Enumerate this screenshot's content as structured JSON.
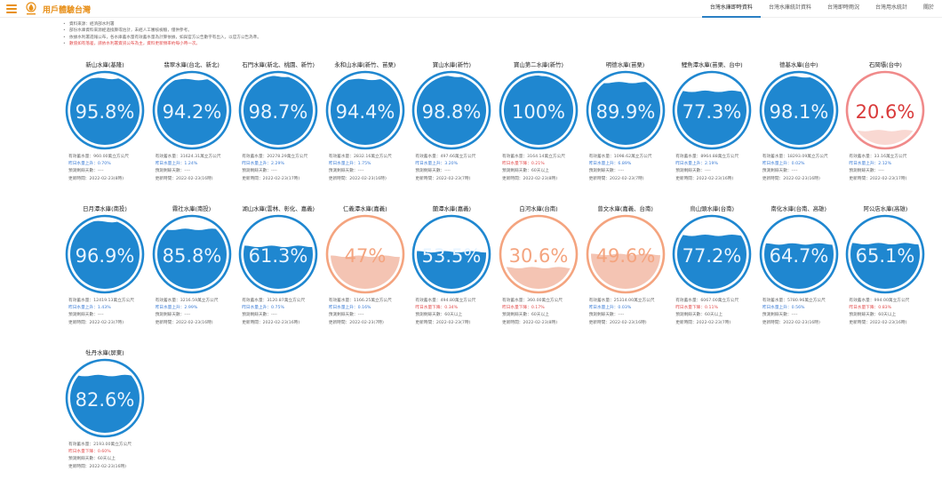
{
  "header": {
    "menu_icon": "hamburger-menu-icon",
    "logo_icon": "water-logo-icon",
    "title": "用戶體驗台灣"
  },
  "nav": {
    "tabs": [
      {
        "label": "台灣水庫即時資料",
        "active": true
      },
      {
        "label": "台灣水庫統計資料",
        "active": false
      },
      {
        "label": "台灣即時雨況",
        "active": false
      },
      {
        "label": "台灣用水統計",
        "active": false
      },
      {
        "label": "關於"
      }
    ]
  },
  "notes": [
    {
      "text": "資料來源：經濟部水利署",
      "red": false
    },
    {
      "text": "部份水庫資料來源經過換算或估計，未經人工審核檢驗，僅供參考。",
      "red": false
    },
    {
      "text": "依據水利署週報公布，各水庫蓄水量有效蓄水量為計算依據，如與官方公告數字有出入，以官方公告為準。",
      "red": false
    },
    {
      "text": "數值如有落差，請依水利署資訊公布為主，資料更新頻率約每小時一次。",
      "red": true
    }
  ],
  "colors": {
    "normal_fill": "#1f87d0",
    "normal_ring": "#1f87d0",
    "normal_text": "#e8f4ff",
    "low_fill": "#f4c4b3",
    "low_ring": "#f4a47f",
    "low_text": "#f4a47f",
    "critical_fill": "#f9d8d2",
    "critical_ring": "#f08a8a",
    "critical_text": "#d93a3a"
  },
  "labels": {
    "capacity": "有效蓄水量：",
    "daily_up": "昨日水量上升：",
    "daily_down": "昨日水量下降：",
    "days_left": "預測剩餘天數：",
    "updated": "更新時間："
  },
  "reservoirs": [
    {
      "name": "新山水庫(基隆)",
      "percent": 95.8,
      "percent_text": "95.8%",
      "status": "normal",
      "capacity": "960.00萬立方公尺",
      "direction": "up",
      "change": "0.70%",
      "days": "----",
      "updated": "2022-02-23(8時)"
    },
    {
      "name": "翡翠水庫(台北、新北)",
      "percent": 94.2,
      "percent_text": "94.2%",
      "status": "normal",
      "capacity": "31624.31萬立方公尺",
      "direction": "up",
      "change": "1.24%",
      "days": "----",
      "updated": "2022-02-23(16時)"
    },
    {
      "name": "石門水庫(新北、桃園、新竹)",
      "percent": 98.7,
      "percent_text": "98.7%",
      "status": "normal",
      "capacity": "20278.29萬立方公尺",
      "direction": "up",
      "change": "2.29%",
      "days": "----",
      "updated": "2022-02-23(17時)"
    },
    {
      "name": "永和山水庫(新竹、苗栗)",
      "percent": 94.4,
      "percent_text": "94.4%",
      "status": "normal",
      "capacity": "2832.16萬立方公尺",
      "direction": "up",
      "change": "1.75%",
      "days": "----",
      "updated": "2022-02-23(16時)"
    },
    {
      "name": "寶山水庫(新竹)",
      "percent": 98.8,
      "percent_text": "98.8%",
      "status": "normal",
      "capacity": "497.66萬立方公尺",
      "direction": "up",
      "change": "3.20%",
      "days": "----",
      "updated": "2022-02-23(7時)"
    },
    {
      "name": "寶山第二水庫(新竹)",
      "percent": 100,
      "percent_text": "100%",
      "status": "normal",
      "capacity": "3164.14萬立方公尺",
      "direction": "down",
      "change": "0.21%",
      "days": "60天以上",
      "updated": "2022-02-23(8時)"
    },
    {
      "name": "明德水庫(苗栗)",
      "percent": 89.9,
      "percent_text": "89.9%",
      "status": "normal",
      "capacity": "1098.62萬立方公尺",
      "direction": "up",
      "change": "6.89%",
      "days": "----",
      "updated": "2022-02-23(7時)"
    },
    {
      "name": "鯉魚潭水庫(苗栗、台中)",
      "percent": 77.3,
      "percent_text": "77.3%",
      "status": "normal",
      "capacity": "8964.88萬立方公尺",
      "direction": "up",
      "change": "2.19%",
      "days": "----",
      "updated": "2022-02-23(16時)"
    },
    {
      "name": "德基水庫(台中)",
      "percent": 98.1,
      "percent_text": "98.1%",
      "status": "normal",
      "capacity": "18293.09萬立方公尺",
      "direction": "up",
      "change": "0.02%",
      "days": "----",
      "updated": "2022-02-23(16時)"
    },
    {
      "name": "石岡壩(台中)",
      "percent": 20.6,
      "percent_text": "20.6%",
      "status": "critical",
      "capacity": "33.16萬立方公尺",
      "direction": "up",
      "change": "2.12%",
      "days": "----",
      "updated": "2022-02-23(17時)"
    },
    {
      "name": "日月潭水庫(南投)",
      "percent": 96.9,
      "percent_text": "96.9%",
      "status": "normal",
      "capacity": "12419.13萬立方公尺",
      "direction": "up",
      "change": "1.43%",
      "days": "----",
      "updated": "2022-02-23(7時)"
    },
    {
      "name": "霧社水庫(南投)",
      "percent": 85.8,
      "percent_text": "85.8%",
      "status": "normal",
      "capacity": "3216.59萬立方公尺",
      "direction": "up",
      "change": "2.99%",
      "days": "----",
      "updated": "2022-02-23(16時)"
    },
    {
      "name": "湖山水庫(雲林、彰化、嘉義)",
      "percent": 61.3,
      "percent_text": "61.3%",
      "status": "normal",
      "capacity": "3120.87萬立方公尺",
      "direction": "up",
      "change": "0.75%",
      "days": "----",
      "updated": "2022-02-23(16時)"
    },
    {
      "name": "仁義潭水庫(嘉義)",
      "percent": 47,
      "percent_text": "47%",
      "status": "low",
      "capacity": "1166.25萬立方公尺",
      "direction": "up",
      "change": "0.16%",
      "days": "----",
      "updated": "2022-02-23(7時)"
    },
    {
      "name": "蘭潭水庫(嘉義)",
      "percent": 53.5,
      "percent_text": "53.5%",
      "status": "normal",
      "capacity": "494.80萬立方公尺",
      "direction": "down",
      "change": "0.34%",
      "days": "60天以上",
      "updated": "2022-02-23(7時)"
    },
    {
      "name": "白河水庫(台南)",
      "percent": 30.6,
      "percent_text": "30.6%",
      "status": "low",
      "capacity": "360.00萬立方公尺",
      "direction": "down",
      "change": "0.17%",
      "days": "60天以上",
      "updated": "2022-02-23(8時)"
    },
    {
      "name": "曾文水庫(嘉義、台南)",
      "percent": 49.6,
      "percent_text": "49.6%",
      "status": "low",
      "capacity": "25314.00萬立方公尺",
      "direction": "up",
      "change": "0.03%",
      "days": "----",
      "updated": "2022-02-23(16時)"
    },
    {
      "name": "烏山頭水庫(台南)",
      "percent": 77.2,
      "percent_text": "77.2%",
      "status": "normal",
      "capacity": "6067.00萬立方公尺",
      "direction": "down",
      "change": "0.11%",
      "days": "60天以上",
      "updated": "2022-02-23(7時)"
    },
    {
      "name": "南化水庫(台南、高雄)",
      "percent": 64.7,
      "percent_text": "64.7%",
      "status": "normal",
      "capacity": "5780.96萬立方公尺",
      "direction": "up",
      "change": "0.56%",
      "days": "----",
      "updated": "2022-02-23(16時)"
    },
    {
      "name": "阿公店水庫(高雄)",
      "percent": 65.1,
      "percent_text": "65.1%",
      "status": "normal",
      "capacity": "994.00萬立方公尺",
      "direction": "down",
      "change": "0.83%",
      "days": "60天以上",
      "updated": "2022-02-23(16時)"
    },
    {
      "name": "牡丹水庫(屏東)",
      "percent": 82.6,
      "percent_text": "82.6%",
      "status": "normal",
      "capacity": "2193.00萬立方公尺",
      "direction": "down",
      "change": "0.60%",
      "days": "60天以上",
      "updated": "2022-02-23(16時)"
    }
  ]
}
